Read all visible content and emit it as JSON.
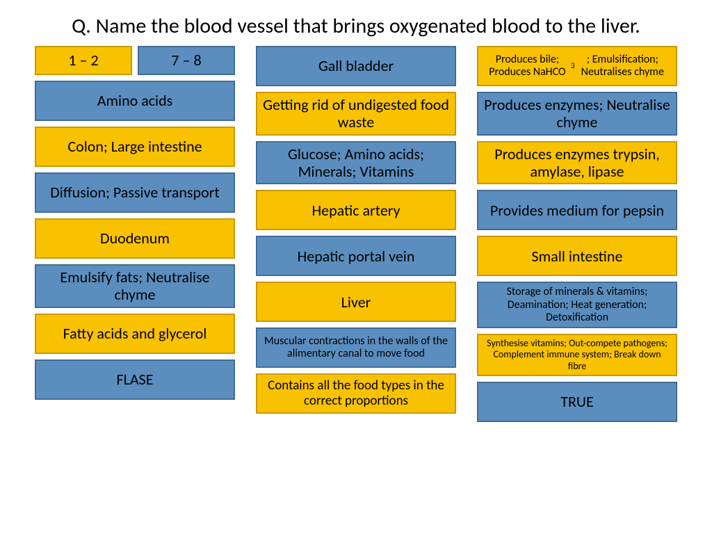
{
  "title": "Q. Name the blood vessel that brings oxygenated blood to the liver.",
  "colors": {
    "blue_bg": "#5b8ebf",
    "blue_border": "#3f6c97",
    "orange_bg": "#f9c200",
    "orange_border": "#c99a00",
    "text": "#000000",
    "page_bg": "#ffffff"
  },
  "columns": [
    {
      "cards": [
        {
          "split": true,
          "a": {
            "text": "1 – 2",
            "color": "orange",
            "size": "lg"
          },
          "b": {
            "text": "7 – 8",
            "color": "blue",
            "size": "lg"
          }
        },
        {
          "text": "Amino acids",
          "color": "blue",
          "size": "lg"
        },
        {
          "text": "Colon; Large intestine",
          "color": "orange",
          "size": "lg"
        },
        {
          "text": "Diffusion; Passive transport",
          "color": "blue",
          "size": "lg"
        },
        {
          "text": "Duodenum",
          "color": "orange",
          "size": "lg"
        },
        {
          "text": "Emulsify fats; Neutralise chyme",
          "color": "blue",
          "size": "lg"
        },
        {
          "text": "Fatty acids and glycerol",
          "color": "orange",
          "size": "lg"
        },
        {
          "text": "FLASE",
          "color": "blue",
          "size": "lg"
        }
      ]
    },
    {
      "cards": [
        {
          "text": "Gall bladder",
          "color": "blue",
          "size": "lg"
        },
        {
          "text": "Getting rid of undigested food waste",
          "color": "orange",
          "size": "lg"
        },
        {
          "text": "Glucose; Amino acids; Minerals; Vitamins",
          "color": "blue",
          "size": "lg"
        },
        {
          "text": "Hepatic artery",
          "color": "orange",
          "size": "lg"
        },
        {
          "text": "Hepatic portal vein",
          "color": "blue",
          "size": "lg"
        },
        {
          "text": "Liver",
          "color": "orange",
          "size": "lg"
        },
        {
          "text": "Muscular contractions in the walls of the alimentary canal to move food",
          "color": "blue",
          "size": "sm"
        },
        {
          "text": "Contains all the food types in the correct proportions",
          "color": "orange",
          "size": "md"
        }
      ]
    },
    {
      "cards": [
        {
          "html": "Produces bile; Produces NaHCO<sub>3</sub>; Emulsification; Neutralises chyme",
          "color": "orange",
          "size": "sm"
        },
        {
          "text": "Produces enzymes; Neutralise chyme",
          "color": "blue",
          "size": "lg"
        },
        {
          "text": "Produces enzymes trypsin, amylase, lipase",
          "color": "orange",
          "size": "lg"
        },
        {
          "text": "Provides medium for pepsin",
          "color": "blue",
          "size": "lg"
        },
        {
          "text": "Small intestine",
          "color": "orange",
          "size": "lg"
        },
        {
          "text": "Storage of minerals & vitamins; Deamination; Heat generation; Detoxification",
          "color": "blue",
          "size": "sm"
        },
        {
          "text": "Synthesise vitamins; Out-compete pathogens; Complement immune system; Break down fibre",
          "color": "orange",
          "size": "xs"
        },
        {
          "text": "TRUE",
          "color": "blue",
          "size": "lg"
        }
      ]
    }
  ]
}
